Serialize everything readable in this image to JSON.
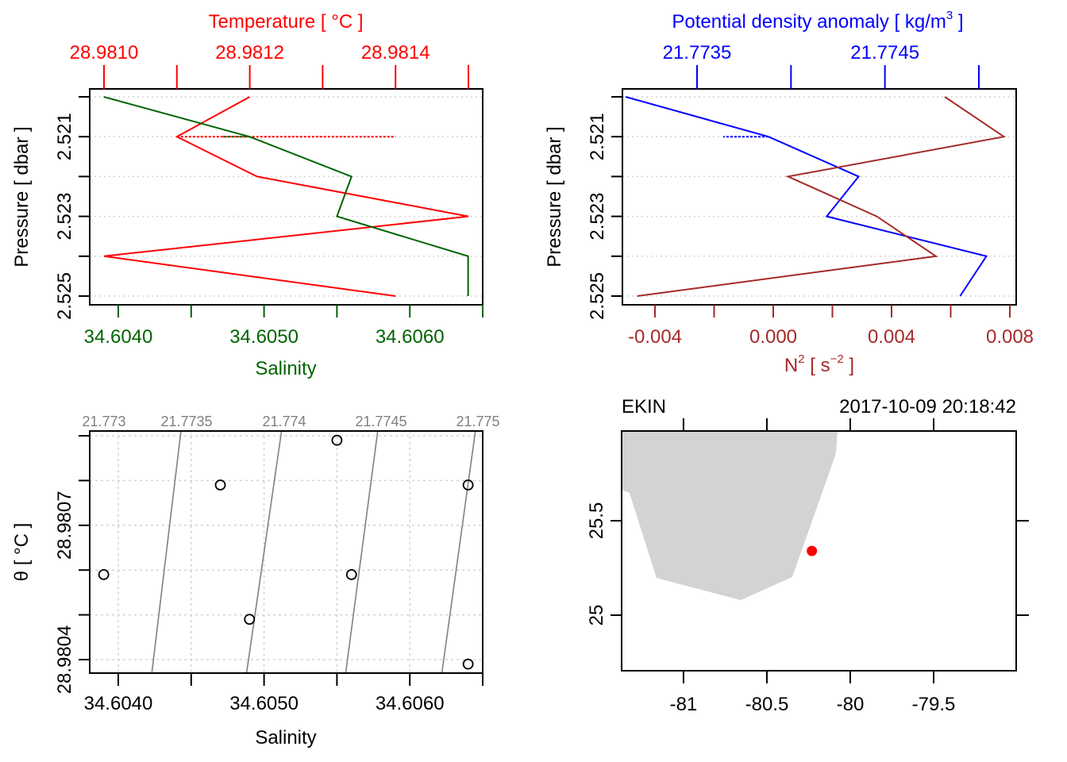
{
  "colors": {
    "temperature": "#ff0000",
    "salinity": "#006400",
    "density": "#0000ff",
    "n2": "#a52a2a",
    "isopycnal": "#808080",
    "grid": "#d3d3d3",
    "land": "#d3d3d3",
    "station": "#ff0000",
    "axis": "#000000"
  },
  "chart_data": [
    {
      "id": "temperature-salinity-profile",
      "type": "line",
      "title": "",
      "ylabel": "Pressure [ dbar ]",
      "y_reversed": true,
      "ylim": [
        2.52,
        2.525
      ],
      "yticks": [
        2.521,
        2.523,
        2.525
      ],
      "ytick_labels": [
        "2.521",
        "2.523",
        "2.525"
      ],
      "grid": "horizontal-dotted",
      "pressure": [
        2.52,
        2.521,
        2.522,
        2.523,
        2.524,
        2.525
      ],
      "series": [
        {
          "name": "Temperature",
          "axis": "top",
          "axis_label": "Temperature [ °C ]",
          "xlim": [
            28.981,
            28.9815
          ],
          "xticks": [
            28.981,
            28.9811,
            28.9812,
            28.9813,
            28.9814,
            28.9815
          ],
          "xtick_labels": [
            "28.9810",
            "",
            "28.9812",
            "",
            "28.9814",
            ""
          ],
          "values": [
            28.9812,
            28.9811,
            28.98121,
            28.9815,
            28.981,
            28.9814
          ],
          "dashed_segment": {
            "pressure": 2.521,
            "from": 28.9811,
            "to": 28.9814
          }
        },
        {
          "name": "Salinity",
          "axis": "bottom",
          "axis_label": "Salinity",
          "xlim": [
            34.6038,
            34.6065
          ],
          "xticks": [
            34.604,
            34.6045,
            34.605,
            34.6055,
            34.606,
            34.6065
          ],
          "xtick_labels": [
            "34.6040",
            "",
            "34.6050",
            "",
            "34.6060",
            ""
          ],
          "values": [
            34.6039,
            34.6049,
            34.6056,
            34.6055,
            34.6064,
            34.6064
          ],
          "dashed_segment": {
            "pressure": 2.521,
            "from": 34.6049,
            "to": 34.60471
          }
        }
      ]
    },
    {
      "id": "density-n2-profile",
      "type": "line",
      "title": "",
      "ylabel": "Pressure [ dbar ]",
      "y_reversed": true,
      "ylim": [
        2.52,
        2.525
      ],
      "yticks": [
        2.521,
        2.523,
        2.525
      ],
      "ytick_labels": [
        "2.521",
        "2.523",
        "2.525"
      ],
      "grid": "horizontal-dotted",
      "pressure": [
        2.52,
        2.521,
        2.522,
        2.523,
        2.524,
        2.525
      ],
      "series": [
        {
          "name": "Potential density anomaly",
          "axis": "top",
          "axis_label": "Potential density anomaly [ kg/m³ ]",
          "xlim": [
            21.77305,
            21.77515
          ],
          "xticks": [
            21.7735,
            21.774,
            21.7745,
            21.775
          ],
          "xtick_labels": [
            "21.7735",
            "",
            "21.7745",
            ""
          ],
          "values": [
            21.77312,
            21.77388,
            21.77436,
            21.77419,
            21.77504,
            21.7749
          ],
          "dashed_segment": {
            "pressure": 2.521,
            "from": 21.77388,
            "to": 21.77364
          }
        },
        {
          "name": "N2",
          "axis": "bottom",
          "axis_label": "N² [ s⁻² ]",
          "xlim": [
            -0.0052,
            0.0083
          ],
          "xticks": [
            -0.004,
            -0.002,
            0.0,
            0.002,
            0.004,
            0.006,
            0.008
          ],
          "xtick_labels": [
            "-0.004",
            "",
            "0.000",
            "",
            "0.004",
            "",
            "0.008"
          ],
          "values": [
            0.0058,
            0.0078,
            0.0005,
            0.0035,
            0.0055,
            -0.0046
          ]
        }
      ]
    },
    {
      "id": "ts-diagram",
      "type": "scatter",
      "title": "",
      "xlabel": "Salinity",
      "ylabel": "θ [ °C ]",
      "xlim": [
        34.6038,
        34.6065
      ],
      "ylim": [
        28.980375,
        28.980925
      ],
      "xticks": [
        34.604,
        34.6045,
        34.605,
        34.6055,
        34.606,
        34.6065
      ],
      "xtick_labels": [
        "34.6040",
        "",
        "34.6050",
        "",
        "34.6060",
        ""
      ],
      "yticks": [
        28.9804,
        28.9805,
        28.9806,
        28.9807,
        28.9808,
        28.9809
      ],
      "ytick_labels": [
        "28.9804",
        "",
        "",
        "28.9807",
        "",
        ""
      ],
      "grid": "dotted",
      "points": [
        {
          "x": 34.6055,
          "y": 28.98089
        },
        {
          "x": 34.6047,
          "y": 28.98079
        },
        {
          "x": 34.6064,
          "y": 28.98079
        },
        {
          "x": 34.6039,
          "y": 28.98059
        },
        {
          "x": 34.6056,
          "y": 28.98059
        },
        {
          "x": 34.6049,
          "y": 28.98049
        },
        {
          "x": 34.6064,
          "y": 28.98039
        }
      ],
      "isopycnals": [
        {
          "label": "21.773",
          "top_x": 34.6039,
          "bottom_x": 34.6039,
          "visible": false
        },
        {
          "label": "21.7735",
          "top_x": 34.60443,
          "bottom_x": 34.60423
        },
        {
          "label": "21.774",
          "top_x": 34.60512,
          "bottom_x": 34.60488
        },
        {
          "label": "21.7745",
          "top_x": 34.60578,
          "bottom_x": 34.60556
        },
        {
          "label": "21.775",
          "top_x": 34.60645,
          "bottom_x": 34.60622
        }
      ]
    },
    {
      "id": "station-map",
      "type": "map",
      "title_left": "EKIN",
      "title_right": "2017-10-09 20:18:42",
      "xlim": [
        -81.371,
        -79.005
      ],
      "ylim": [
        24.706,
        25.975
      ],
      "xticks": [
        -81,
        -80.5,
        -80,
        -79.5
      ],
      "xtick_labels": [
        "-81",
        "-80.5",
        "-80",
        "-79.5"
      ],
      "yticks": [
        25,
        25.5
      ],
      "ytick_labels": [
        "25",
        "25.5"
      ],
      "land_polygon": [
        [
          -81.371,
          25.975
        ],
        [
          -80.076,
          25.975
        ],
        [
          -80.086,
          25.861
        ],
        [
          -80.105,
          25.807
        ],
        [
          -80.348,
          25.202
        ],
        [
          -80.657,
          25.08
        ],
        [
          -81.162,
          25.197
        ],
        [
          -81.324,
          25.647
        ],
        [
          -81.371,
          25.664
        ]
      ],
      "station": {
        "lon": -80.23,
        "lat": 25.34
      }
    }
  ]
}
